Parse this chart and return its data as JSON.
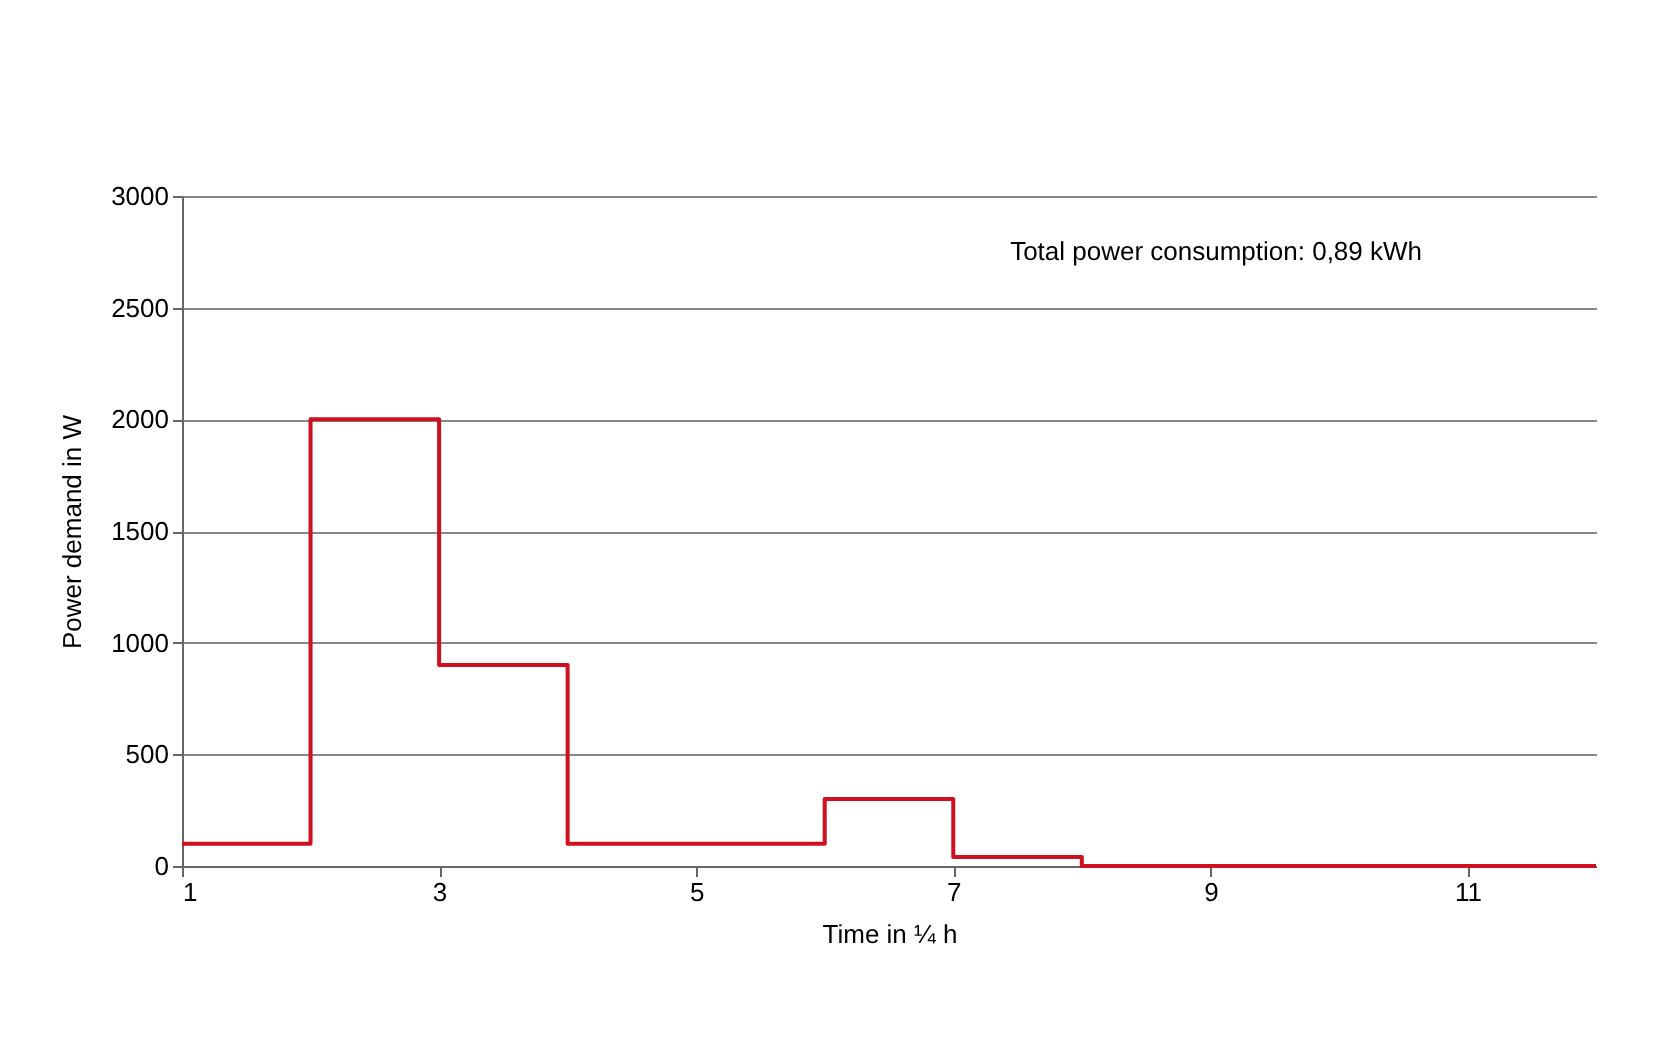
{
  "chart_data": {
    "type": "step",
    "xlabel": "Time in ¼ h",
    "ylabel": "Power demand in W",
    "annotations": [
      "Total power consumption: 0,89 kWh"
    ],
    "x": [
      1,
      2,
      3,
      4,
      5,
      6,
      7,
      8,
      9,
      10,
      11,
      12
    ],
    "series": [
      {
        "color": "#d0101e",
        "values": [
          100,
          2000,
          900,
          100,
          100,
          300,
          40,
          0,
          0,
          0,
          0,
          0
        ]
      }
    ],
    "xlim": [
      1,
      12
    ],
    "xticks": [
      1,
      3,
      5,
      7,
      9,
      11
    ],
    "ylim": [
      0,
      3000
    ],
    "yticks": [
      0,
      500,
      1000,
      1500,
      2000,
      2500,
      3000
    ],
    "grid": "y",
    "marker": "none",
    "line_style": "solid"
  }
}
